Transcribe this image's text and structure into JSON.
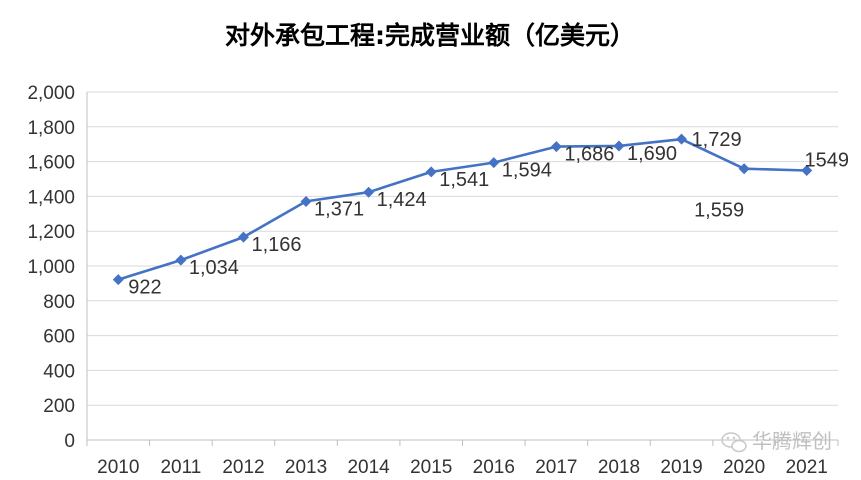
{
  "chart_data": {
    "type": "line",
    "title": "对外承包工程:完成营业额（亿美元）",
    "xlabel": "",
    "ylabel": "",
    "categories": [
      "2010",
      "2011",
      "2012",
      "2013",
      "2014",
      "2015",
      "2016",
      "2017",
      "2018",
      "2019",
      "2020",
      "2021"
    ],
    "series": [
      {
        "values": [
          922,
          1034,
          1166,
          1371,
          1424,
          1541,
          1594,
          1686,
          1690,
          1729,
          1559,
          1549
        ]
      }
    ],
    "data_labels": [
      "922",
      "1,034",
      "1,166",
      "1,371",
      "1,424",
      "1,541",
      "1,594",
      "1,686",
      "1,690",
      "1,729",
      "1,559",
      "1549"
    ],
    "ylim": [
      0,
      2000
    ],
    "y_ticks": [
      "0",
      "200",
      "400",
      "600",
      "800",
      "1,000",
      "1,200",
      "1,400",
      "1,600",
      "1,800",
      "2,000"
    ],
    "grid": true,
    "legend": "none",
    "line_color": "#4472C4"
  },
  "watermark": {
    "text": "华腾辉创",
    "icon": "wechat-icon"
  }
}
